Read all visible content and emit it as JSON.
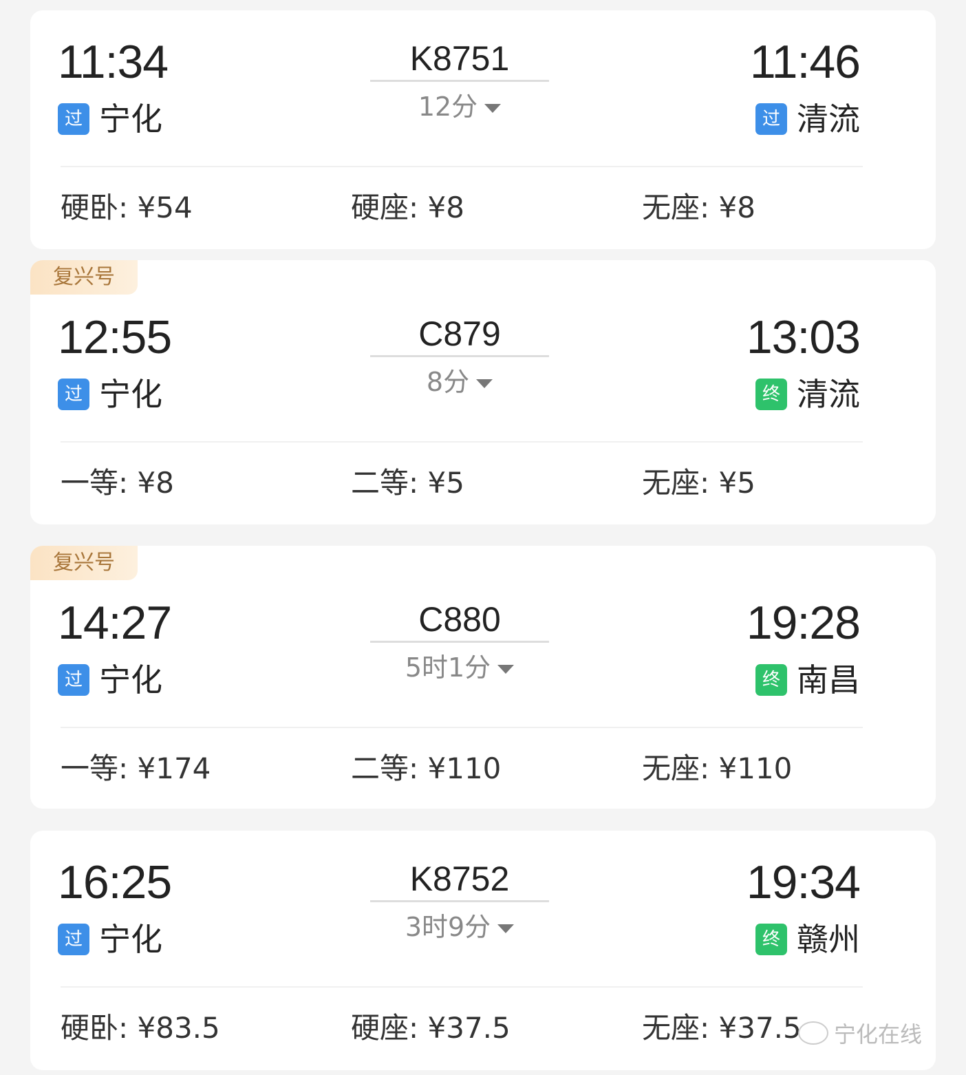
{
  "colors": {
    "pass_tag": "#3d8fe8",
    "end_tag": "#2ec26b",
    "badge_bg": "#fbe3c4",
    "badge_text": "#a8763a"
  },
  "trains": [
    {
      "badge": null,
      "depart_time": "11:34",
      "depart_tag": "过",
      "depart_tag_type": "pass",
      "depart_station": "宁化",
      "train_no": "K8751",
      "duration": "12分",
      "arrive_time": "11:46",
      "arrive_tag": "过",
      "arrive_tag_type": "pass",
      "arrive_station": "清流",
      "prices": [
        "硬卧: ¥54",
        "硬座: ¥8",
        "无座: ¥8"
      ]
    },
    {
      "badge": "复兴号",
      "depart_time": "12:55",
      "depart_tag": "过",
      "depart_tag_type": "pass",
      "depart_station": "宁化",
      "train_no": "C879",
      "duration": "8分",
      "arrive_time": "13:03",
      "arrive_tag": "终",
      "arrive_tag_type": "end",
      "arrive_station": "清流",
      "prices": [
        "一等: ¥8",
        "二等: ¥5",
        "无座: ¥5"
      ]
    },
    {
      "badge": "复兴号",
      "depart_time": "14:27",
      "depart_tag": "过",
      "depart_tag_type": "pass",
      "depart_station": "宁化",
      "train_no": "C880",
      "duration": "5时1分",
      "arrive_time": "19:28",
      "arrive_tag": "终",
      "arrive_tag_type": "end",
      "arrive_station": "南昌",
      "prices": [
        "一等: ¥174",
        "二等: ¥110",
        "无座: ¥110"
      ]
    },
    {
      "badge": null,
      "depart_time": "16:25",
      "depart_tag": "过",
      "depart_tag_type": "pass",
      "depart_station": "宁化",
      "train_no": "K8752",
      "duration": "3时9分",
      "arrive_time": "19:34",
      "arrive_tag": "终",
      "arrive_tag_type": "end",
      "arrive_station": "赣州",
      "prices": [
        "硬卧: ¥83.5",
        "硬座: ¥37.5",
        "无座: ¥37.5"
      ]
    }
  ],
  "watermark": {
    "text": "宁化在线",
    "icon": "wechat-icon"
  }
}
